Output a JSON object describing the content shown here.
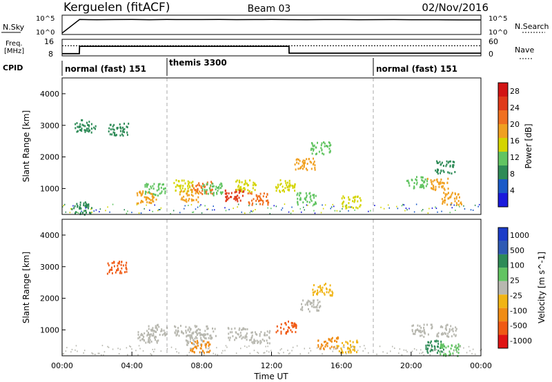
{
  "header": {
    "station": "Kerguelen (fitACF)",
    "beam": "Beam 03",
    "date": "02/Nov/2016"
  },
  "noise_panel": {
    "left_label": "N.Sky",
    "left_ticks": [
      "10^5",
      "10^0"
    ],
    "right_ticks": [
      "10^5",
      "10^0"
    ],
    "right_label": "N.Search"
  },
  "freq_panel": {
    "left_label_1": "Freq.",
    "left_label_2": "[MHz]",
    "left_ticks": [
      "16",
      "8"
    ],
    "right_ticks": [
      "60",
      "0"
    ],
    "right_label": "Nave",
    "cpid_label": "CPID",
    "modes": [
      {
        "label": "normal (fast) 151",
        "start_hour": 0
      },
      {
        "label": "themis 3300",
        "start_hour": 6
      },
      {
        "label": "normal (fast) 151",
        "start_hour": 18
      }
    ]
  },
  "colors": {
    "power": [
      "#1a1adc",
      "#1a5ac8",
      "#2e8b57",
      "#62c462",
      "#d4d400",
      "#f0a020",
      "#f07020",
      "#e03a1a",
      "#d21414"
    ],
    "velocity_pos": [
      "#1c3cc8",
      "#2e5ab4",
      "#2e8b57",
      "#62c462"
    ],
    "velocity_zero": "#b8b8b0",
    "velocity_neg": [
      "#f0b414",
      "#f08c14",
      "#f05a14",
      "#e01414"
    ]
  },
  "chart_data": [
    {
      "type": "line",
      "name": "noise",
      "x": [
        0,
        1,
        2,
        3,
        4,
        5,
        6,
        7,
        8,
        9,
        10,
        11,
        12,
        13,
        14,
        15,
        16,
        17,
        18,
        19,
        20,
        21,
        22,
        23,
        24
      ],
      "series": [
        {
          "name": "N.Sky",
          "values": [
            1,
            30000,
            25000,
            28000,
            30000,
            26000,
            30000,
            29000,
            28000,
            32000,
            27000,
            28000,
            30000,
            27000,
            26000,
            29000,
            28000,
            26000,
            27000,
            28000,
            26000,
            25000,
            24000,
            22000,
            22000
          ]
        }
      ],
      "yscale": "log",
      "ylim": [
        "10^0",
        "10^5"
      ]
    },
    {
      "type": "line",
      "name": "frequency",
      "x": [
        0,
        0.99,
        1.0,
        13.0,
        13.01,
        24
      ],
      "series": [
        {
          "name": "Freq.",
          "values": [
            8.5,
            8.5,
            13,
            13,
            8.8,
            8.8
          ]
        },
        {
          "name": "Nave",
          "values": [
            40,
            40,
            40,
            40,
            40,
            40
          ]
        }
      ],
      "ylim": [
        8,
        16
      ],
      "y2lim": [
        0,
        60
      ]
    },
    {
      "type": "heatmap",
      "name": "power",
      "xlabel": "Time UT",
      "ylabel": "Slant Range [km]",
      "xlim": [
        0,
        24
      ],
      "ylim": [
        180,
        4500
      ],
      "xticks": [
        "00:00",
        "04:00",
        "08:00",
        "12:00",
        "16:00",
        "20:00",
        "00:00"
      ],
      "yticks": [
        1000,
        2000,
        3000,
        4000
      ],
      "colorbar": {
        "label": "Power [dB]",
        "ticks": [
          4,
          8,
          12,
          16,
          20,
          24,
          28
        ],
        "range": [
          0,
          30
        ]
      },
      "patches": [
        {
          "t": 1.1,
          "r": 400,
          "v": 8
        },
        {
          "t": 1.3,
          "r": 3000,
          "v": 6
        },
        {
          "t": 3.2,
          "r": 2900,
          "v": 6
        },
        {
          "t": 4.8,
          "r": 750,
          "v": 18
        },
        {
          "t": 5.3,
          "r": 1000,
          "v": 12
        },
        {
          "t": 6.9,
          "r": 1100,
          "v": 16
        },
        {
          "t": 7.3,
          "r": 800,
          "v": 20
        },
        {
          "t": 8.0,
          "r": 1050,
          "v": 24
        },
        {
          "t": 8.6,
          "r": 1000,
          "v": 12
        },
        {
          "t": 9.9,
          "r": 800,
          "v": 26
        },
        {
          "t": 10.5,
          "r": 1100,
          "v": 16
        },
        {
          "t": 11.2,
          "r": 700,
          "v": 22
        },
        {
          "t": 12.8,
          "r": 1100,
          "v": 14
        },
        {
          "t": 13.9,
          "r": 1800,
          "v": 18
        },
        {
          "t": 14.8,
          "r": 2300,
          "v": 12
        },
        {
          "t": 14.0,
          "r": 700,
          "v": 10
        },
        {
          "t": 16.5,
          "r": 600,
          "v": 14
        },
        {
          "t": 20.3,
          "r": 1200,
          "v": 12
        },
        {
          "t": 21.5,
          "r": 1150,
          "v": 20
        },
        {
          "t": 21.9,
          "r": 1700,
          "v": 8
        },
        {
          "t": 22.3,
          "r": 700,
          "v": 18
        }
      ]
    },
    {
      "type": "heatmap",
      "name": "velocity",
      "xlabel": "Time UT",
      "ylabel": "Slant Range [km]",
      "xlim": [
        0,
        24
      ],
      "ylim": [
        180,
        4500
      ],
      "xticks": [
        "00:00",
        "04:00",
        "08:00",
        "12:00",
        "16:00",
        "20:00",
        "00:00"
      ],
      "yticks": [
        1000,
        2000,
        3000,
        4000
      ],
      "colorbar": {
        "label": "Velocity [m s^-1]",
        "ticks": [
          "1000",
          "500",
          "100",
          "25",
          "-25",
          "-100",
          "-500",
          "-1000"
        ]
      },
      "patches": [
        {
          "t": 3.1,
          "r": 3000,
          "v": -300
        },
        {
          "t": 4.9,
          "r": 800,
          "v": 0
        },
        {
          "t": 5.4,
          "r": 1000,
          "v": 0
        },
        {
          "t": 7.0,
          "r": 1000,
          "v": 0
        },
        {
          "t": 7.6,
          "r": 700,
          "v": 0
        },
        {
          "t": 8.2,
          "r": 950,
          "v": 0
        },
        {
          "t": 7.9,
          "r": 500,
          "v": -200
        },
        {
          "t": 10.0,
          "r": 900,
          "v": 0
        },
        {
          "t": 11.3,
          "r": 800,
          "v": 0
        },
        {
          "t": 12.8,
          "r": 1100,
          "v": -400
        },
        {
          "t": 14.2,
          "r": 1800,
          "v": 0
        },
        {
          "t": 14.9,
          "r": 2300,
          "v": -50
        },
        {
          "t": 15.2,
          "r": 600,
          "v": -150
        },
        {
          "t": 16.3,
          "r": 500,
          "v": -100
        },
        {
          "t": 20.6,
          "r": 1000,
          "v": 0
        },
        {
          "t": 21.3,
          "r": 500,
          "v": 60
        },
        {
          "t": 22.0,
          "r": 1000,
          "v": 0
        },
        {
          "t": 22.2,
          "r": 400,
          "v": 30
        }
      ]
    }
  ]
}
